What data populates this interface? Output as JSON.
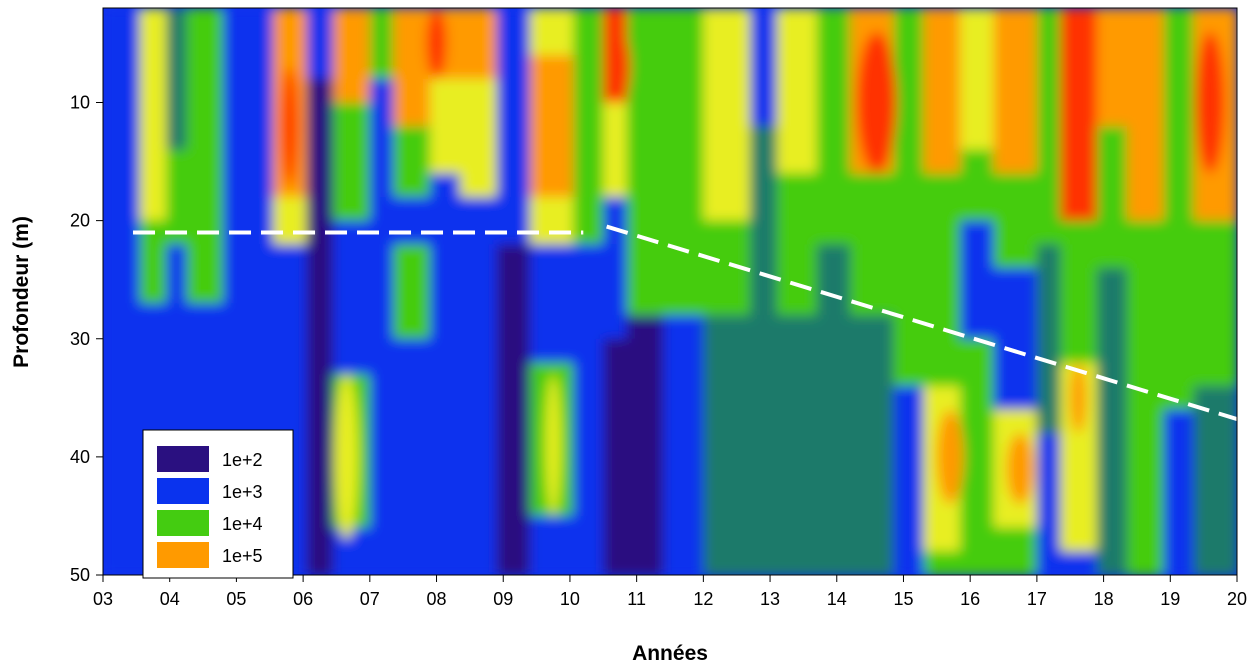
{
  "chart_data": {
    "type": "heatmap",
    "xlabel": "Années",
    "ylabel": "Profondeur (m)",
    "xlim": [
      3,
      20
    ],
    "ylim": [
      50,
      2
    ],
    "y_inverted": true,
    "x_tick_labels": [
      "03",
      "04",
      "05",
      "06",
      "07",
      "08",
      "09",
      "10",
      "11",
      "12",
      "13",
      "14",
      "15",
      "16",
      "17",
      "18",
      "19",
      "20"
    ],
    "y_tick_labels": [
      "10",
      "20",
      "30",
      "40",
      "50"
    ],
    "y_ticks": [
      10,
      20,
      30,
      40,
      50
    ],
    "legend": {
      "placement": "bottom-left",
      "entries": [
        {
          "label": "1e+2",
          "color": "#2a1080"
        },
        {
          "label": "1e+3",
          "color": "#0a33ee"
        },
        {
          "label": "1e+4",
          "color": "#44cc11"
        },
        {
          "label": "1e+5",
          "color": "#ff9a00"
        }
      ]
    },
    "color_scale": [
      "#2a1080",
      "#0a33ee",
      "#1c7a6a",
      "#44cc11",
      "#e8ee22",
      "#ff9a00",
      "#ff3300"
    ],
    "annotations": [
      {
        "type": "dashed-line",
        "color": "#ffffff",
        "points": [
          [
            3.45,
            21
          ],
          [
            10.2,
            21
          ]
        ]
      },
      {
        "type": "dashed-line",
        "color": "#ffffff",
        "points": [
          [
            10.55,
            20.5
          ],
          [
            20,
            36.8
          ]
        ]
      }
    ],
    "columns": [
      {
        "x": [
          3.0,
          3.55
        ],
        "bands": [
          {
            "y": [
              2,
              22
            ],
            "v": 1
          },
          {
            "y": [
              22,
              50
            ],
            "v": 1
          }
        ]
      },
      {
        "x": [
          3.55,
          3.95
        ],
        "bands": [
          {
            "y": [
              2,
              20
            ],
            "v": 4
          },
          {
            "y": [
              20,
              27
            ],
            "v": 3
          },
          {
            "y": [
              27,
              50
            ],
            "v": 1
          }
        ]
      },
      {
        "x": [
          3.95,
          4.25
        ],
        "bands": [
          {
            "y": [
              2,
              14
            ],
            "v": 2
          },
          {
            "y": [
              14,
              22
            ],
            "v": 3
          },
          {
            "y": [
              22,
              50
            ],
            "v": 1
          }
        ]
      },
      {
        "x": [
          4.25,
          4.8
        ],
        "bands": [
          {
            "y": [
              2,
              20
            ],
            "v": 3
          },
          {
            "y": [
              20,
              27
            ],
            "v": 3
          },
          {
            "y": [
              27,
              50
            ],
            "v": 1
          }
        ]
      },
      {
        "x": [
          4.8,
          5.55
        ],
        "bands": [
          {
            "y": [
              2,
              22
            ],
            "v": 1
          },
          {
            "y": [
              22,
              50
            ],
            "v": 1
          }
        ]
      },
      {
        "x": [
          5.55,
          6.05
        ],
        "bands": [
          {
            "y": [
              2,
              18
            ],
            "v": 5
          },
          {
            "y": [
              18,
              22
            ],
            "v": 4
          },
          {
            "y": [
              22,
              50
            ],
            "v": 1
          }
        ]
      },
      {
        "x": [
          6.05,
          6.45
        ],
        "bands": [
          {
            "y": [
              2,
              8
            ],
            "v": 1
          },
          {
            "y": [
              8,
              50
            ],
            "v": 0
          }
        ]
      },
      {
        "x": [
          6.45,
          7.0
        ],
        "bands": [
          {
            "y": [
              2,
              10
            ],
            "v": 5
          },
          {
            "y": [
              10,
              20
            ],
            "v": 3
          },
          {
            "y": [
              20,
              33
            ],
            "v": 1
          },
          {
            "y": [
              33,
              46
            ],
            "v": 3
          },
          {
            "y": [
              46,
              50
            ],
            "v": 1
          }
        ]
      },
      {
        "x": [
          7.0,
          7.35
        ],
        "bands": [
          {
            "y": [
              2,
              8
            ],
            "v": 3
          },
          {
            "y": [
              8,
              50
            ],
            "v": 1
          }
        ]
      },
      {
        "x": [
          7.35,
          7.9
        ],
        "bands": [
          {
            "y": [
              2,
              12
            ],
            "v": 5
          },
          {
            "y": [
              12,
              18
            ],
            "v": 3
          },
          {
            "y": [
              18,
              22
            ],
            "v": 1
          },
          {
            "y": [
              22,
              30
            ],
            "v": 3
          },
          {
            "y": [
              30,
              50
            ],
            "v": 1
          }
        ]
      },
      {
        "x": [
          7.9,
          8.35
        ],
        "bands": [
          {
            "y": [
              2,
              8
            ],
            "v": 5
          },
          {
            "y": [
              8,
              16
            ],
            "v": 4
          },
          {
            "y": [
              16,
              50
            ],
            "v": 1
          }
        ]
      },
      {
        "x": [
          8.35,
          8.9
        ],
        "bands": [
          {
            "y": [
              2,
              8
            ],
            "v": 5
          },
          {
            "y": [
              8,
              18
            ],
            "v": 4
          },
          {
            "y": [
              18,
              50
            ],
            "v": 1
          }
        ]
      },
      {
        "x": [
          8.9,
          9.4
        ],
        "bands": [
          {
            "y": [
              2,
              22
            ],
            "v": 1
          },
          {
            "y": [
              22,
              50
            ],
            "v": 0
          }
        ]
      },
      {
        "x": [
          9.4,
          10.05
        ],
        "bands": [
          {
            "y": [
              2,
              6
            ],
            "v": 4
          },
          {
            "y": [
              6,
              18
            ],
            "v": 5
          },
          {
            "y": [
              18,
              22
            ],
            "v": 4
          },
          {
            "y": [
              22,
              32
            ],
            "v": 1
          },
          {
            "y": [
              32,
              45
            ],
            "v": 3
          },
          {
            "y": [
              45,
              50
            ],
            "v": 1
          }
        ]
      },
      {
        "x": [
          10.05,
          10.5
        ],
        "bands": [
          {
            "y": [
              2,
              22
            ],
            "v": 3
          },
          {
            "y": [
              22,
              50
            ],
            "v": 1
          }
        ]
      },
      {
        "x": [
          10.5,
          10.85
        ],
        "bands": [
          {
            "y": [
              2,
              10
            ],
            "v": 6
          },
          {
            "y": [
              10,
              18
            ],
            "v": 4
          },
          {
            "y": [
              18,
              30
            ],
            "v": 1
          },
          {
            "y": [
              30,
              50
            ],
            "v": 0
          }
        ]
      },
      {
        "x": [
          10.85,
          11.4
        ],
        "bands": [
          {
            "y": [
              2,
              20
            ],
            "v": 3
          },
          {
            "y": [
              20,
              28
            ],
            "v": 3
          },
          {
            "y": [
              28,
              50
            ],
            "v": 0
          }
        ]
      },
      {
        "x": [
          11.4,
          12.0
        ],
        "bands": [
          {
            "y": [
              2,
              20
            ],
            "v": 3
          },
          {
            "y": [
              20,
              28
            ],
            "v": 3
          },
          {
            "y": [
              28,
              50
            ],
            "v": 1
          }
        ]
      },
      {
        "x": [
          12.0,
          12.7
        ],
        "bands": [
          {
            "y": [
              2,
              20
            ],
            "v": 4
          },
          {
            "y": [
              20,
              28
            ],
            "v": 3
          },
          {
            "y": [
              28,
              50
            ],
            "v": 2
          }
        ]
      },
      {
        "x": [
          12.7,
          13.1
        ],
        "bands": [
          {
            "y": [
              2,
              12
            ],
            "v": 1
          },
          {
            "y": [
              12,
              50
            ],
            "v": 2
          }
        ]
      },
      {
        "x": [
          13.1,
          13.7
        ],
        "bands": [
          {
            "y": [
              2,
              16
            ],
            "v": 4
          },
          {
            "y": [
              16,
              28
            ],
            "v": 3
          },
          {
            "y": [
              28,
              50
            ],
            "v": 2
          }
        ]
      },
      {
        "x": [
          13.7,
          14.2
        ],
        "bands": [
          {
            "y": [
              2,
              22
            ],
            "v": 3
          },
          {
            "y": [
              22,
              50
            ],
            "v": 2
          }
        ]
      },
      {
        "x": [
          14.2,
          14.85
        ],
        "bands": [
          {
            "y": [
              2,
              16
            ],
            "v": 5
          },
          {
            "y": [
              16,
              28
            ],
            "v": 3
          },
          {
            "y": [
              28,
              50
            ],
            "v": 2
          }
        ]
      },
      {
        "x": [
          14.85,
          15.3
        ],
        "bands": [
          {
            "y": [
              2,
              22
            ],
            "v": 3
          },
          {
            "y": [
              22,
              34
            ],
            "v": 3
          },
          {
            "y": [
              34,
              50
            ],
            "v": 1
          }
        ]
      },
      {
        "x": [
          15.3,
          15.85
        ],
        "bands": [
          {
            "y": [
              2,
              16
            ],
            "v": 5
          },
          {
            "y": [
              16,
              34
            ],
            "v": 3
          },
          {
            "y": [
              34,
              48
            ],
            "v": 4
          },
          {
            "y": [
              48,
              50
            ],
            "v": 3
          }
        ]
      },
      {
        "x": [
          15.85,
          16.35
        ],
        "bands": [
          {
            "y": [
              2,
              14
            ],
            "v": 4
          },
          {
            "y": [
              14,
              20
            ],
            "v": 3
          },
          {
            "y": [
              20,
              30
            ],
            "v": 1
          },
          {
            "y": [
              30,
              50
            ],
            "v": 3
          }
        ]
      },
      {
        "x": [
          16.35,
          17.0
        ],
        "bands": [
          {
            "y": [
              2,
              16
            ],
            "v": 5
          },
          {
            "y": [
              16,
              24
            ],
            "v": 3
          },
          {
            "y": [
              24,
              36
            ],
            "v": 1
          },
          {
            "y": [
              36,
              46
            ],
            "v": 4
          },
          {
            "y": [
              46,
              50
            ],
            "v": 3
          }
        ]
      },
      {
        "x": [
          17.0,
          17.35
        ],
        "bands": [
          {
            "y": [
              2,
              22
            ],
            "v": 3
          },
          {
            "y": [
              22,
              38
            ],
            "v": 2
          },
          {
            "y": [
              38,
              50
            ],
            "v": 1
          }
        ]
      },
      {
        "x": [
          17.35,
          17.9
        ],
        "bands": [
          {
            "y": [
              2,
              20
            ],
            "v": 6
          },
          {
            "y": [
              20,
              32
            ],
            "v": 3
          },
          {
            "y": [
              32,
              48
            ],
            "v": 4
          },
          {
            "y": [
              48,
              50
            ],
            "v": 1
          }
        ]
      },
      {
        "x": [
          17.9,
          18.35
        ],
        "bands": [
          {
            "y": [
              2,
              12
            ],
            "v": 5
          },
          {
            "y": [
              12,
              24
            ],
            "v": 3
          },
          {
            "y": [
              24,
              50
            ],
            "v": 2
          }
        ]
      },
      {
        "x": [
          18.35,
          18.9
        ],
        "bands": [
          {
            "y": [
              2,
              20
            ],
            "v": 5
          },
          {
            "y": [
              20,
              34
            ],
            "v": 3
          },
          {
            "y": [
              34,
              50
            ],
            "v": 3
          }
        ]
      },
      {
        "x": [
          18.9,
          19.35
        ],
        "bands": [
          {
            "y": [
              2,
              22
            ],
            "v": 3
          },
          {
            "y": [
              22,
              36
            ],
            "v": 3
          },
          {
            "y": [
              36,
              50
            ],
            "v": 1
          }
        ]
      },
      {
        "x": [
          19.35,
          20.0
        ],
        "bands": [
          {
            "y": [
              2,
              20
            ],
            "v": 5
          },
          {
            "y": [
              20,
              34
            ],
            "v": 3
          },
          {
            "y": [
              34,
              50
            ],
            "v": 2
          }
        ]
      }
    ],
    "ellipses": [
      {
        "cx": 6.65,
        "cy": 40,
        "rx": 0.18,
        "ry": 7,
        "v": 4
      },
      {
        "cx": 9.75,
        "cy": 39,
        "rx": 0.12,
        "ry": 6,
        "v": 4
      },
      {
        "cx": 15.7,
        "cy": 40,
        "rx": 0.2,
        "ry": 4,
        "v": 5
      },
      {
        "cx": 16.75,
        "cy": 41,
        "rx": 0.2,
        "ry": 3,
        "v": 5
      },
      {
        "cx": 17.62,
        "cy": 35,
        "rx": 0.12,
        "ry": 3,
        "v": 5
      },
      {
        "cx": 5.8,
        "cy": 12,
        "rx": 0.12,
        "ry": 5,
        "v": 6
      },
      {
        "cx": 14.6,
        "cy": 10,
        "rx": 0.3,
        "ry": 6,
        "v": 6
      },
      {
        "cx": 10.75,
        "cy": 7,
        "rx": 0.15,
        "ry": 3,
        "v": 6
      },
      {
        "cx": 19.6,
        "cy": 10,
        "rx": 0.22,
        "ry": 6,
        "v": 6
      },
      {
        "cx": 11.1,
        "cy": 40,
        "rx": 0.25,
        "ry": 7,
        "v": 0
      },
      {
        "cx": 8.0,
        "cy": 5,
        "rx": 0.15,
        "ry": 3,
        "v": 6
      }
    ]
  }
}
